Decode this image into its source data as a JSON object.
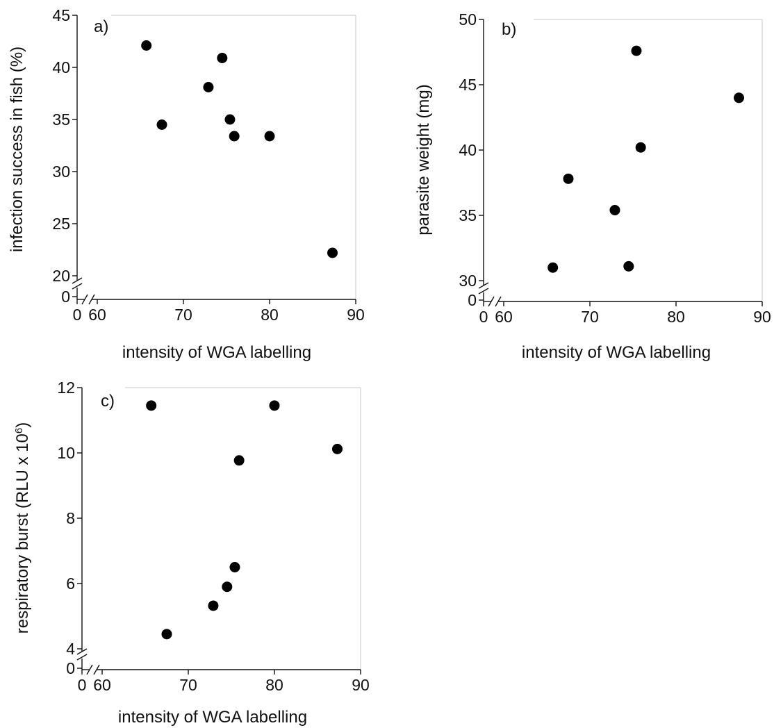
{
  "chart_data": [
    {
      "type": "scatter",
      "panel_label": "a)",
      "xlabel": "intensity of WGA labelling",
      "ylabel": "infection success in fish (%)",
      "xlim": [
        60,
        90
      ],
      "ylim": [
        20,
        45
      ],
      "x_axis_break": true,
      "y_axis_break": true,
      "x_ticks": [
        "0",
        "60",
        "70",
        "80",
        "90"
      ],
      "y_ticks": [
        "0",
        "20",
        "25",
        "30",
        "35",
        "40",
        "45"
      ],
      "points": [
        {
          "x": 65.7,
          "y": 42.1
        },
        {
          "x": 67.5,
          "y": 34.5
        },
        {
          "x": 72.9,
          "y": 38.1
        },
        {
          "x": 74.5,
          "y": 40.9
        },
        {
          "x": 75.4,
          "y": 35.0
        },
        {
          "x": 75.9,
          "y": 33.4
        },
        {
          "x": 80.0,
          "y": 33.4
        },
        {
          "x": 87.3,
          "y": 22.2
        }
      ]
    },
    {
      "type": "scatter",
      "panel_label": "b)",
      "xlabel": "intensity of WGA labelling",
      "ylabel": "parasite weight (mg)",
      "xlim": [
        60,
        90
      ],
      "ylim": [
        30,
        50
      ],
      "x_axis_break": true,
      "y_axis_break": true,
      "x_ticks": [
        "0",
        "60",
        "70",
        "80",
        "90"
      ],
      "y_ticks": [
        "0",
        "30",
        "35",
        "40",
        "45",
        "50"
      ],
      "points": [
        {
          "x": 65.7,
          "y": 31.0
        },
        {
          "x": 67.5,
          "y": 37.8
        },
        {
          "x": 72.9,
          "y": 35.4
        },
        {
          "x": 74.5,
          "y": 31.1
        },
        {
          "x": 75.4,
          "y": 47.6
        },
        {
          "x": 75.9,
          "y": 40.2
        },
        {
          "x": 87.3,
          "y": 44.0
        }
      ]
    },
    {
      "type": "scatter",
      "panel_label": "c)",
      "xlabel": "intensity of WGA labelling",
      "ylabel": "respiratory burst (RLU x 10",
      "ylabel_superscript": "6",
      "ylabel_suffix": ")",
      "xlim": [
        60,
        90
      ],
      "ylim": [
        4,
        12
      ],
      "x_axis_break": true,
      "y_axis_break": true,
      "x_ticks": [
        "0",
        "60",
        "70",
        "80",
        "90"
      ],
      "y_ticks": [
        "0",
        "4",
        "6",
        "8",
        "10",
        "12"
      ],
      "points": [
        {
          "x": 65.7,
          "y": 11.45
        },
        {
          "x": 67.5,
          "y": 4.45
        },
        {
          "x": 72.9,
          "y": 5.32
        },
        {
          "x": 74.5,
          "y": 5.9
        },
        {
          "x": 75.4,
          "y": 6.5
        },
        {
          "x": 75.9,
          "y": 9.77
        },
        {
          "x": 80.0,
          "y": 11.45
        },
        {
          "x": 87.3,
          "y": 10.12
        }
      ]
    }
  ]
}
